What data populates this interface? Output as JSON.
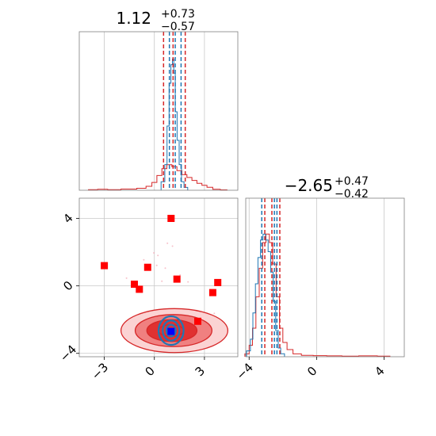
{
  "chart_data": {
    "type": "corner-plot",
    "colors": {
      "red": "#d62728",
      "blue": "#1f77b4",
      "square_marker": "#ff0000",
      "truth_marker": "#0000ff",
      "frame": "#7f7f7f",
      "grid": "#c8c8c8",
      "fill_dark": "#e03131",
      "fill_mid": "#f08080",
      "fill_light": "#fbd3d3"
    },
    "parameters": [
      {
        "title": {
          "main": "1.12",
          "sup": "+0.73",
          "sub": "−0.57"
        },
        "range": [
          -4.5,
          5.0
        ],
        "ticks": [
          -3,
          0,
          3
        ],
        "tick_labels": [
          "−3",
          "0",
          "3"
        ]
      },
      {
        "title": {
          "main": "−2.65",
          "sup": "+0.47",
          "sub": "−0.42"
        },
        "range": [
          -4.2,
          5.2
        ],
        "ticks": [
          -4,
          0,
          4
        ],
        "tick_labels": [
          "−4",
          "0",
          "4"
        ]
      }
    ],
    "y_ticks_joint": [
      -4,
      0,
      4
    ],
    "y_tick_labels_joint": [
      "−4",
      "0",
      "4"
    ],
    "marginal_1": {
      "red_quantiles": [
        0.55,
        1.12,
        1.85
      ],
      "blue_quantiles": [
        0.9,
        1.25,
        1.6
      ],
      "red_hist": [
        {
          "x": -3.8,
          "h": 0.006
        },
        {
          "x": -3.0,
          "h": 0.01
        },
        {
          "x": -2.6,
          "h": 0.006
        },
        {
          "x": -1.4,
          "h": 0.012
        },
        {
          "x": -0.7,
          "h": 0.02
        },
        {
          "x": -0.3,
          "h": 0.04
        },
        {
          "x": 0.0,
          "h": 0.08
        },
        {
          "x": 0.3,
          "h": 0.15
        },
        {
          "x": 0.6,
          "h": 0.22
        },
        {
          "x": 0.9,
          "h": 0.26
        },
        {
          "x": 1.2,
          "h": 0.24
        },
        {
          "x": 1.5,
          "h": 0.2
        },
        {
          "x": 1.8,
          "h": 0.16
        },
        {
          "x": 2.1,
          "h": 0.13
        },
        {
          "x": 2.4,
          "h": 0.1
        },
        {
          "x": 2.7,
          "h": 0.07
        },
        {
          "x": 3.0,
          "h": 0.05
        },
        {
          "x": 3.3,
          "h": 0.03
        },
        {
          "x": 3.7,
          "h": 0.01
        },
        {
          "x": 4.2,
          "h": 0.004
        }
      ],
      "blue_hist": [
        {
          "x": 0.55,
          "h": 0.06
        },
        {
          "x": 0.7,
          "h": 0.18
        },
        {
          "x": 0.82,
          "h": 0.45
        },
        {
          "x": 0.94,
          "h": 0.75
        },
        {
          "x": 1.04,
          "h": 0.88
        },
        {
          "x": 1.12,
          "h": 0.92
        },
        {
          "x": 1.2,
          "h": 0.82
        },
        {
          "x": 1.3,
          "h": 0.55
        },
        {
          "x": 1.42,
          "h": 0.35
        },
        {
          "x": 1.55,
          "h": 0.18
        },
        {
          "x": 1.7,
          "h": 0.06
        },
        {
          "x": 1.85,
          "h": 0.02
        }
      ]
    },
    "marginal_2": {
      "red_quantiles": [
        -3.07,
        -2.65,
        -2.18
      ],
      "blue_quantiles": [
        -3.25,
        -2.5,
        -2.35
      ],
      "red_hist": [
        {
          "x": -4.1,
          "h": 0.02
        },
        {
          "x": -3.9,
          "h": 0.08
        },
        {
          "x": -3.7,
          "h": 0.2
        },
        {
          "x": -3.5,
          "h": 0.42
        },
        {
          "x": -3.3,
          "h": 0.62
        },
        {
          "x": -3.1,
          "h": 0.8
        },
        {
          "x": -2.9,
          "h": 0.86
        },
        {
          "x": -2.7,
          "h": 0.8
        },
        {
          "x": -2.5,
          "h": 0.65
        },
        {
          "x": -2.3,
          "h": 0.42
        },
        {
          "x": -2.1,
          "h": 0.2
        },
        {
          "x": -1.9,
          "h": 0.1
        },
        {
          "x": -1.6,
          "h": 0.05
        },
        {
          "x": -1.2,
          "h": 0.02
        },
        {
          "x": -0.6,
          "h": 0.01
        },
        {
          "x": 0.2,
          "h": 0.008
        },
        {
          "x": 1.0,
          "h": 0.006
        },
        {
          "x": 2.0,
          "h": 0.004
        },
        {
          "x": 3.0,
          "h": 0.006
        },
        {
          "x": 4.2,
          "h": 0.004
        }
      ],
      "blue_hist": [
        {
          "x": -4.0,
          "h": 0.04
        },
        {
          "x": -3.85,
          "h": 0.12
        },
        {
          "x": -3.7,
          "h": 0.3
        },
        {
          "x": -3.55,
          "h": 0.5
        },
        {
          "x": -3.4,
          "h": 0.68
        },
        {
          "x": -3.25,
          "h": 0.8
        },
        {
          "x": -3.1,
          "h": 0.84
        },
        {
          "x": -2.95,
          "h": 0.8
        },
        {
          "x": -2.8,
          "h": 0.72
        },
        {
          "x": -2.65,
          "h": 0.58
        },
        {
          "x": -2.5,
          "h": 0.38
        },
        {
          "x": -2.35,
          "h": 0.18
        },
        {
          "x": -2.2,
          "h": 0.06
        },
        {
          "x": -2.05,
          "h": 0.02
        }
      ]
    },
    "joint": {
      "center": [
        1.0,
        -2.65
      ],
      "red_contour_radii": [
        [
          3.2,
          1.3
        ],
        [
          2.3,
          0.95
        ],
        [
          1.5,
          0.65
        ],
        [
          0.75,
          0.35
        ]
      ],
      "red_contour_offset_x": [
        0.2,
        0.15,
        0.05,
        0.0
      ],
      "blue_contour_radii": [
        [
          0.75,
          0.85
        ],
        [
          0.5,
          0.6
        ],
        [
          0.28,
          0.35
        ]
      ],
      "blue_point": [
        1.0,
        -2.7
      ],
      "red_squares": [
        {
          "x": -3.0,
          "y": 1.2
        },
        {
          "x": -1.2,
          "y": 0.1
        },
        {
          "x": -0.9,
          "y": -0.2
        },
        {
          "x": -0.4,
          "y": 1.1
        },
        {
          "x": 1.0,
          "y": 4.0
        },
        {
          "x": 1.35,
          "y": 0.4
        },
        {
          "x": 2.6,
          "y": -2.1
        },
        {
          "x": 3.5,
          "y": -0.4
        },
        {
          "x": 3.8,
          "y": 0.2
        }
      ],
      "scatter_sigma": [
        1.3,
        0.7
      ],
      "scatter_count": 55
    }
  }
}
